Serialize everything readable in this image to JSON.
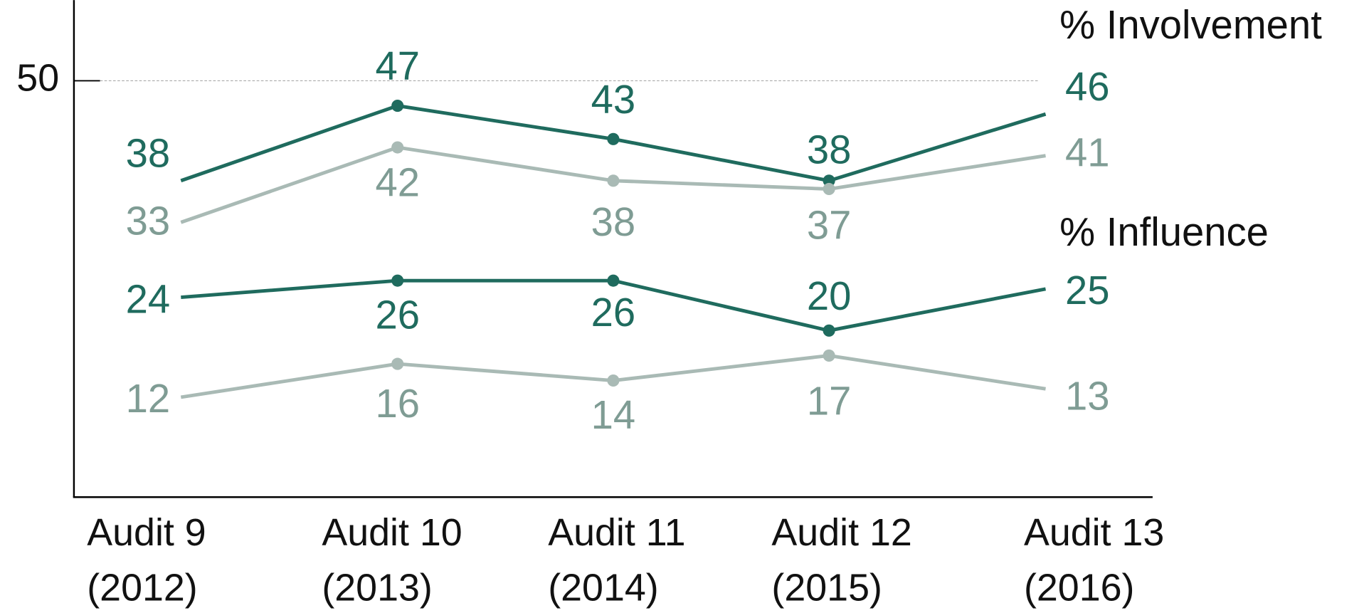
{
  "chart_data": {
    "type": "line",
    "categories": [
      [
        "Audit 9",
        "(2012)"
      ],
      [
        "Audit 10",
        "(2013)"
      ],
      [
        "Audit 11",
        "(2014)"
      ],
      [
        "Audit 12",
        "(2015)"
      ],
      [
        "Audit 13",
        "(2016)"
      ]
    ],
    "series": [
      {
        "color": "#1f6b5e",
        "label_color": "#1f6b5e",
        "values": [
          38,
          47,
          43,
          38,
          46
        ]
      },
      {
        "color": "#a9bab5",
        "label_color": "#7f9c94",
        "values": [
          33,
          42,
          38,
          37,
          41
        ]
      },
      {
        "color": "#1f6b5e",
        "label_color": "#1f6b5e",
        "values": [
          24,
          26,
          26,
          20,
          25
        ]
      },
      {
        "color": "#a9bab5",
        "label_color": "#7f9c94",
        "values": [
          12,
          16,
          14,
          17,
          13
        ]
      }
    ],
    "annotations": [
      "% Involvement",
      "% Influence"
    ],
    "ylim": [
      0,
      60
    ],
    "yticks": [
      50
    ],
    "grid": true
  }
}
